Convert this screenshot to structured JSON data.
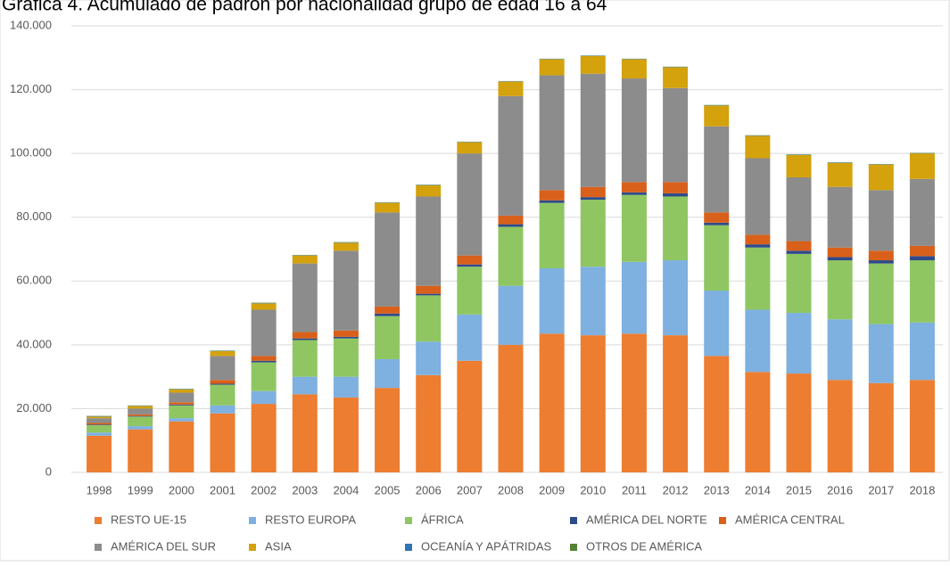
{
  "chart_data": {
    "type": "stacked_bar",
    "title": "Gráfica 4. Acumulado de padrón por nacionalidad grupo de edad 16 a 64",
    "categories": [
      "1998",
      "1999",
      "2000",
      "2001",
      "2002",
      "2003",
      "2004",
      "2005",
      "2006",
      "2007",
      "2008",
      "2009",
      "2010",
      "2011",
      "2012",
      "2013",
      "2014",
      "2015",
      "2016",
      "2017",
      "2018"
    ],
    "series": [
      {
        "name": "RESTO UE-15",
        "color": "#ed7d31",
        "values": [
          11500,
          13500,
          16000,
          18500,
          21500,
          24500,
          23500,
          26500,
          30500,
          35000,
          40000,
          43500,
          43000,
          43500,
          43000,
          36500,
          31500,
          31000,
          29000,
          28000,
          29000
        ]
      },
      {
        "name": "RESTO EUROPA",
        "color": "#7eb0e0",
        "values": [
          1000,
          1000,
          1000,
          2500,
          4000,
          5500,
          6500,
          9000,
          10500,
          14500,
          18500,
          20500,
          21500,
          22500,
          23500,
          20500,
          19500,
          19000,
          19000,
          18500,
          18000
        ]
      },
      {
        "name": "ÁFRICA",
        "color": "#8fc662",
        "values": [
          2300,
          3000,
          4000,
          6500,
          9000,
          11500,
          12000,
          13500,
          14500,
          15000,
          18500,
          20500,
          21000,
          21000,
          20000,
          20500,
          19500,
          18500,
          18500,
          19000,
          19500
        ]
      },
      {
        "name": "AMÉRICA DEL NORTE",
        "color": "#2f4b8a",
        "values": [
          200,
          200,
          300,
          300,
          500,
          500,
          500,
          800,
          500,
          700,
          800,
          800,
          800,
          800,
          1000,
          800,
          1000,
          1000,
          1000,
          1000,
          1300
        ]
      },
      {
        "name": "AMÉRICA CENTRAL",
        "color": "#d9601a",
        "values": [
          500,
          500,
          700,
          1200,
          1500,
          2000,
          2000,
          2200,
          2500,
          2800,
          2700,
          3200,
          3200,
          3200,
          3500,
          3200,
          3000,
          3000,
          3000,
          3000,
          3200
        ]
      },
      {
        "name": "AMÉRICA DEL SUR",
        "color": "#8c8c8c",
        "values": [
          1500,
          1800,
          3000,
          7500,
          14500,
          21500,
          25000,
          29500,
          28000,
          32000,
          37500,
          36000,
          35500,
          32500,
          29500,
          27000,
          24000,
          20000,
          19000,
          19000,
          21000
        ]
      },
      {
        "name": "ASIA",
        "color": "#d4a20c",
        "values": [
          500,
          800,
          1000,
          1500,
          2000,
          2500,
          2500,
          3000,
          3500,
          3500,
          4500,
          5000,
          5500,
          6000,
          6500,
          6500,
          7000,
          7000,
          7500,
          8000,
          8000
        ]
      },
      {
        "name": "OCEANÍA Y APÁTRIDAS",
        "color": "#2e75b6",
        "values": [
          100,
          100,
          100,
          100,
          100,
          100,
          100,
          100,
          100,
          100,
          100,
          100,
          100,
          100,
          100,
          100,
          100,
          100,
          100,
          100,
          100
        ]
      },
      {
        "name": "OTROS DE AMÉRICA",
        "color": "#548235",
        "values": [
          100,
          100,
          100,
          100,
          100,
          100,
          100,
          100,
          100,
          100,
          100,
          100,
          100,
          100,
          100,
          100,
          100,
          100,
          100,
          100,
          100
        ]
      }
    ],
    "ylim": [
      0,
      140000
    ],
    "yticks": [
      0,
      {
        "value": 20000,
        "label": "20.000"
      },
      {
        "value": 40000,
        "label": "40.000"
      },
      {
        "value": 60000,
        "label": "60.000"
      },
      {
        "value": 80000,
        "label": "80.000"
      },
      {
        "value": 100000,
        "label": "100.000"
      },
      {
        "value": 120000,
        "label": "120.000"
      },
      {
        "value": 140000,
        "label": "140.000"
      }
    ],
    "grid": true
  }
}
